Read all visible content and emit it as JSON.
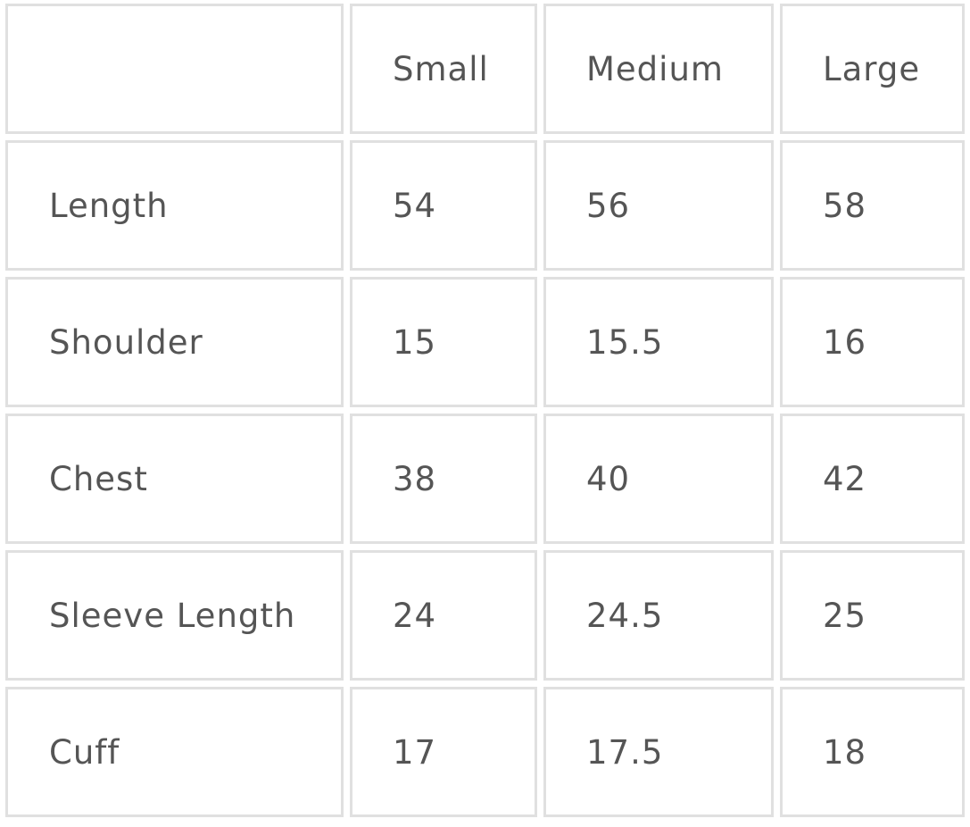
{
  "table": {
    "headers": [
      "",
      "Small",
      "Medium",
      "Large"
    ],
    "rows": [
      [
        "Length",
        "54",
        "56",
        "58"
      ],
      [
        "Shoulder",
        "15",
        "15.5",
        "16"
      ],
      [
        "Chest",
        "38",
        "40",
        "42"
      ],
      [
        "Sleeve Length",
        "24",
        "24.5",
        "25"
      ],
      [
        "Cuff",
        "17",
        "17.5",
        "18"
      ]
    ]
  }
}
